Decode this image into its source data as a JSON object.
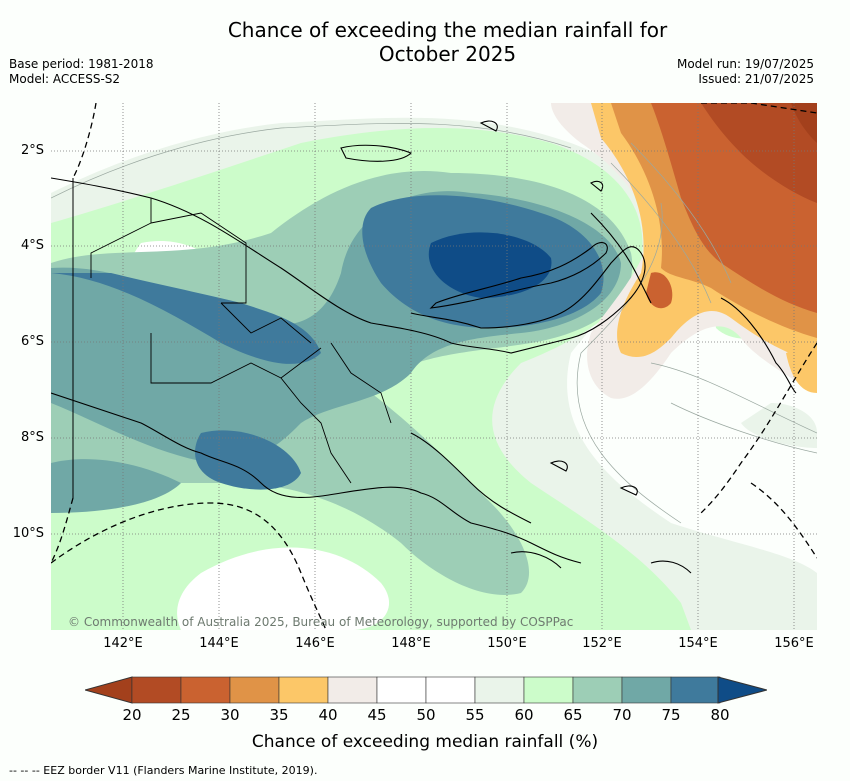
{
  "title_line1": "Chance of exceeding the median rainfall for",
  "title_line2": "October 2025",
  "meta_left": [
    "Base period: 1981-2018",
    "Model: ACCESS-S2"
  ],
  "meta_right": [
    "Model run: 19/07/2025",
    "Issued: 21/07/2025"
  ],
  "lat_labels": [
    "2°S",
    "4°S",
    "6°S",
    "8°S",
    "10°S"
  ],
  "lon_labels": [
    "142°E",
    "144°E",
    "146°E",
    "148°E",
    "150°E",
    "152°E",
    "154°E",
    "156°E"
  ],
  "copyright": "© Commonwealth of Australia 2025, Bureau of Meteorology, supported by COSPPac",
  "colorbar": {
    "labels": [
      "20",
      "25",
      "30",
      "35",
      "40",
      "45",
      "50",
      "55",
      "60",
      "65",
      "70",
      "75",
      "80"
    ],
    "colors": [
      "#a3401c",
      "#b24b24",
      "#ca6230",
      "#e09347",
      "#fcc768",
      "#f2ece8",
      "#ffffff",
      "#ffffff",
      "#eaf4ea",
      "#ccfcca",
      "#9dceb6",
      "#70a8a6",
      "#3f7a9c",
      "#0f4c87"
    ],
    "title": "Chance of exceeding median rainfall (%)"
  },
  "footer": "--  --  -- EEZ border V11 (Flanders Marine Institute, 2019)."
}
